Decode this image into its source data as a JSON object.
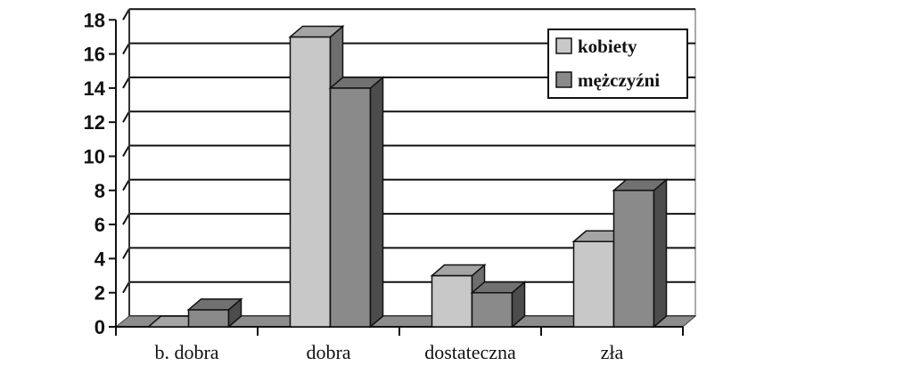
{
  "chart_data": {
    "type": "bar",
    "style": "3d-clustered",
    "categories": [
      "b. dobra",
      "dobra",
      "dostateczna",
      "zła"
    ],
    "series": [
      {
        "name": "kobiety",
        "values": [
          0,
          17,
          3,
          5
        ],
        "color": "#c8c8c8"
      },
      {
        "name": "mężczyźni",
        "values": [
          1,
          14,
          2,
          8
        ],
        "color": "#8a8a8a"
      }
    ],
    "title": "",
    "xlabel": "",
    "ylabel": "",
    "ylim": [
      0,
      18
    ],
    "yticks": [
      "0",
      "2",
      "4",
      "6",
      "8",
      "10",
      "12",
      "14",
      "16",
      "18"
    ],
    "grid": true,
    "legend_position": "top-right"
  }
}
